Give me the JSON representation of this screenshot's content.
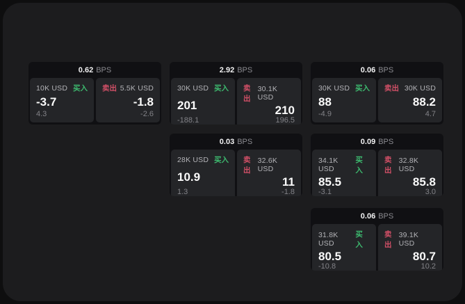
{
  "labels": {
    "buy": "买入",
    "sell": "卖出",
    "bps_suffix": "BPS"
  },
  "colors": {
    "buy_green": "#3dba6f",
    "sell_red": "#d25067",
    "surface_bg": "#1c1c1e",
    "card_bg": "#101013",
    "panel_bg": "#242528"
  },
  "cards": [
    {
      "bps": "0.62",
      "buy": {
        "size": "10K USD",
        "value": "-3.7",
        "change": "4.3"
      },
      "sell": {
        "size": "5.5K USD",
        "value": "-1.8",
        "change": "-2.6"
      }
    },
    {
      "bps": "2.92",
      "buy": {
        "size": "30K USD",
        "value": "201",
        "change": "-188.1"
      },
      "sell": {
        "size": "30.1K USD",
        "value": "210",
        "change": "196.5"
      }
    },
    {
      "bps": "0.06",
      "buy": {
        "size": "30K USD",
        "value": "88",
        "change": "-4.9"
      },
      "sell": {
        "size": "30K USD",
        "value": "88.2",
        "change": "4.7"
      }
    },
    {
      "bps": "0.03",
      "buy": {
        "size": "28K USD",
        "value": "10.9",
        "change": "1.3"
      },
      "sell": {
        "size": "32.6K USD",
        "value": "11",
        "change": "-1.8"
      }
    },
    {
      "bps": "0.09",
      "buy": {
        "size": "34.1K USD",
        "value": "85.5",
        "change": "-3.1"
      },
      "sell": {
        "size": "32.8K USD",
        "value": "85.8",
        "change": "3.0"
      }
    },
    {
      "bps": "0.06",
      "buy": {
        "size": "31.8K USD",
        "value": "80.5",
        "change": "-10.8"
      },
      "sell": {
        "size": "39.1K USD",
        "value": "80.7",
        "change": "10.2"
      }
    }
  ]
}
